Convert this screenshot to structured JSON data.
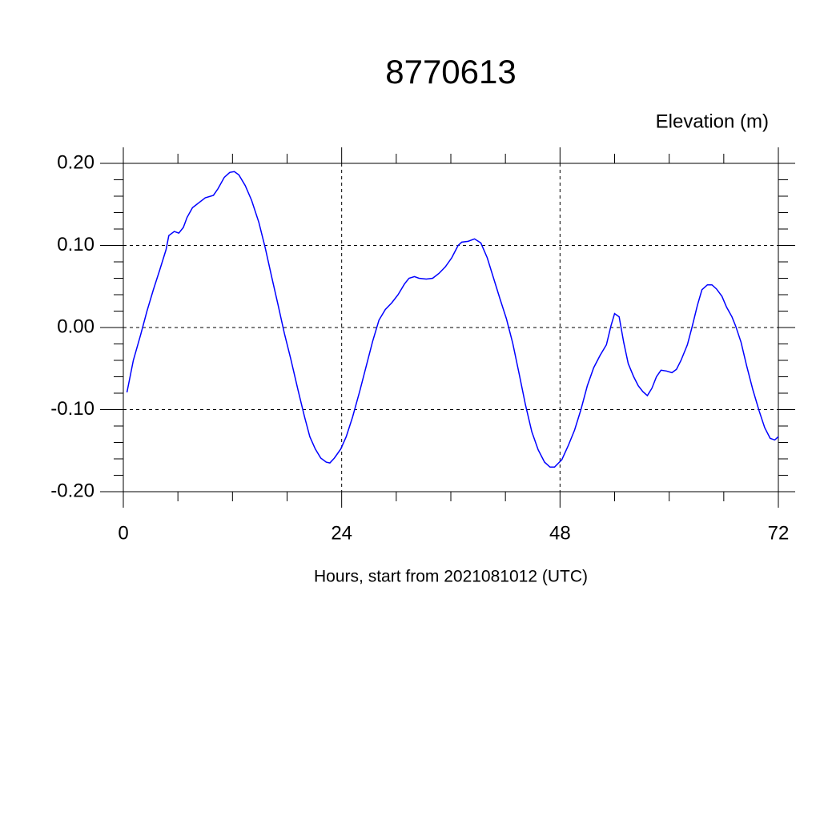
{
  "chart_data": {
    "type": "line",
    "title": "8770613",
    "y_label": "Elevation (m)",
    "x_label": "Hours, start from 2021081012 (UTC)",
    "xlim": [
      0,
      72
    ],
    "ylim": [
      -0.2,
      0.2
    ],
    "xticks": [
      0,
      24,
      48,
      72
    ],
    "yticks": [
      {
        "value": -0.2,
        "label": "-0.20"
      },
      {
        "value": -0.1,
        "label": "-0.10"
      },
      {
        "value": 0,
        "label": "0.00"
      },
      {
        "value": 0.1,
        "label": "0.10"
      },
      {
        "value": 0.2,
        "label": "0.20"
      }
    ],
    "grid": true,
    "series": [
      {
        "color": "#0000ff",
        "x": [
          0.4,
          1.1,
          1.9,
          2.6,
          3.3,
          4.0,
          4.7,
          5.0,
          5.6,
          6.1,
          6.6,
          7.0,
          7.6,
          8.3,
          9.0,
          9.9,
          10.4,
          11.1,
          11.7,
          12.2,
          12.7,
          13.4,
          14.1,
          14.9,
          15.6,
          16.3,
          17.0,
          17.7,
          18.4,
          19.2,
          19.9,
          20.5,
          21.1,
          21.7,
          22.3,
          22.7,
          23.2,
          23.9,
          24.5,
          25.2,
          26.0,
          26.7,
          27.4,
          28.1,
          28.8,
          29.5,
          30.2,
          30.9,
          31.4,
          32.0,
          32.5,
          33.3,
          34.0,
          34.7,
          35.4,
          36.1,
          36.8,
          37.2,
          37.9,
          38.6,
          39.3,
          40.0,
          40.7,
          41.4,
          42.1,
          42.8,
          43.5,
          44.2,
          44.9,
          45.6,
          46.3,
          46.9,
          47.4,
          48.2,
          48.9,
          49.6,
          50.3,
          51.0,
          51.7,
          52.4,
          53.1,
          53.6,
          54.0,
          54.5,
          55.0,
          55.5,
          56.1,
          56.6,
          57.1,
          57.6,
          58.1,
          58.6,
          59.1,
          59.7,
          60.3,
          60.8,
          61.3,
          62.0,
          62.5,
          63.1,
          63.6,
          64.2,
          64.7,
          65.2,
          65.8,
          66.3,
          66.9,
          67.3,
          67.9,
          68.5,
          69.2,
          69.9,
          70.5,
          71.1,
          71.6,
          72.0
        ],
        "values": [
          -0.079,
          -0.04,
          -0.009,
          0.02,
          0.046,
          0.07,
          0.095,
          0.112,
          0.117,
          0.115,
          0.122,
          0.134,
          0.146,
          0.152,
          0.158,
          0.161,
          0.169,
          0.183,
          0.189,
          0.19,
          0.186,
          0.173,
          0.155,
          0.128,
          0.097,
          0.062,
          0.028,
          -0.007,
          -0.038,
          -0.076,
          -0.108,
          -0.133,
          -0.148,
          -0.159,
          -0.164,
          -0.165,
          -0.159,
          -0.148,
          -0.133,
          -0.109,
          -0.077,
          -0.047,
          -0.017,
          0.009,
          0.022,
          0.03,
          0.04,
          0.053,
          0.06,
          0.062,
          0.06,
          0.059,
          0.06,
          0.066,
          0.074,
          0.085,
          0.1,
          0.104,
          0.105,
          0.108,
          0.103,
          0.085,
          0.06,
          0.035,
          0.011,
          -0.019,
          -0.056,
          -0.094,
          -0.127,
          -0.149,
          -0.164,
          -0.17,
          -0.17,
          -0.161,
          -0.144,
          -0.125,
          -0.1,
          -0.071,
          -0.049,
          -0.034,
          -0.021,
          0.002,
          0.017,
          0.013,
          -0.018,
          -0.044,
          -0.06,
          -0.071,
          -0.078,
          -0.083,
          -0.074,
          -0.06,
          -0.052,
          -0.053,
          -0.055,
          -0.051,
          -0.04,
          -0.021,
          0.0,
          0.027,
          0.046,
          0.052,
          0.052,
          0.047,
          0.038,
          0.025,
          0.013,
          0.002,
          -0.018,
          -0.046,
          -0.076,
          -0.102,
          -0.122,
          -0.135,
          -0.137,
          -0.133
        ]
      }
    ]
  }
}
